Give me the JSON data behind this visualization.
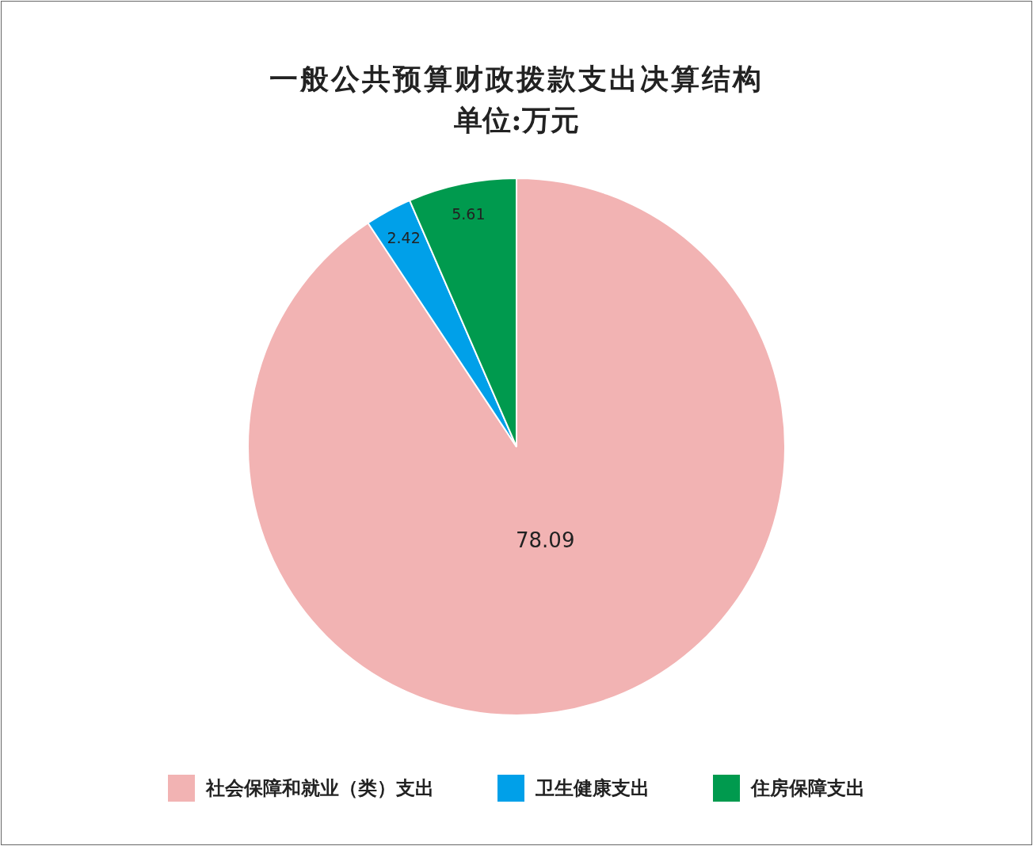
{
  "chart_data": {
    "type": "pie",
    "title": "一般公共预算财政拨款支出决算结构",
    "subtitle": "单位:万元",
    "categories": [
      "社会保障和就业（类）支出",
      "卫生健康支出",
      "住房保障支出"
    ],
    "values": [
      78.09,
      2.42,
      5.61
    ],
    "colors": [
      "#f2b3b3",
      "#00a0e9",
      "#009a4e"
    ],
    "data_labels": true,
    "legend": "bottom"
  }
}
